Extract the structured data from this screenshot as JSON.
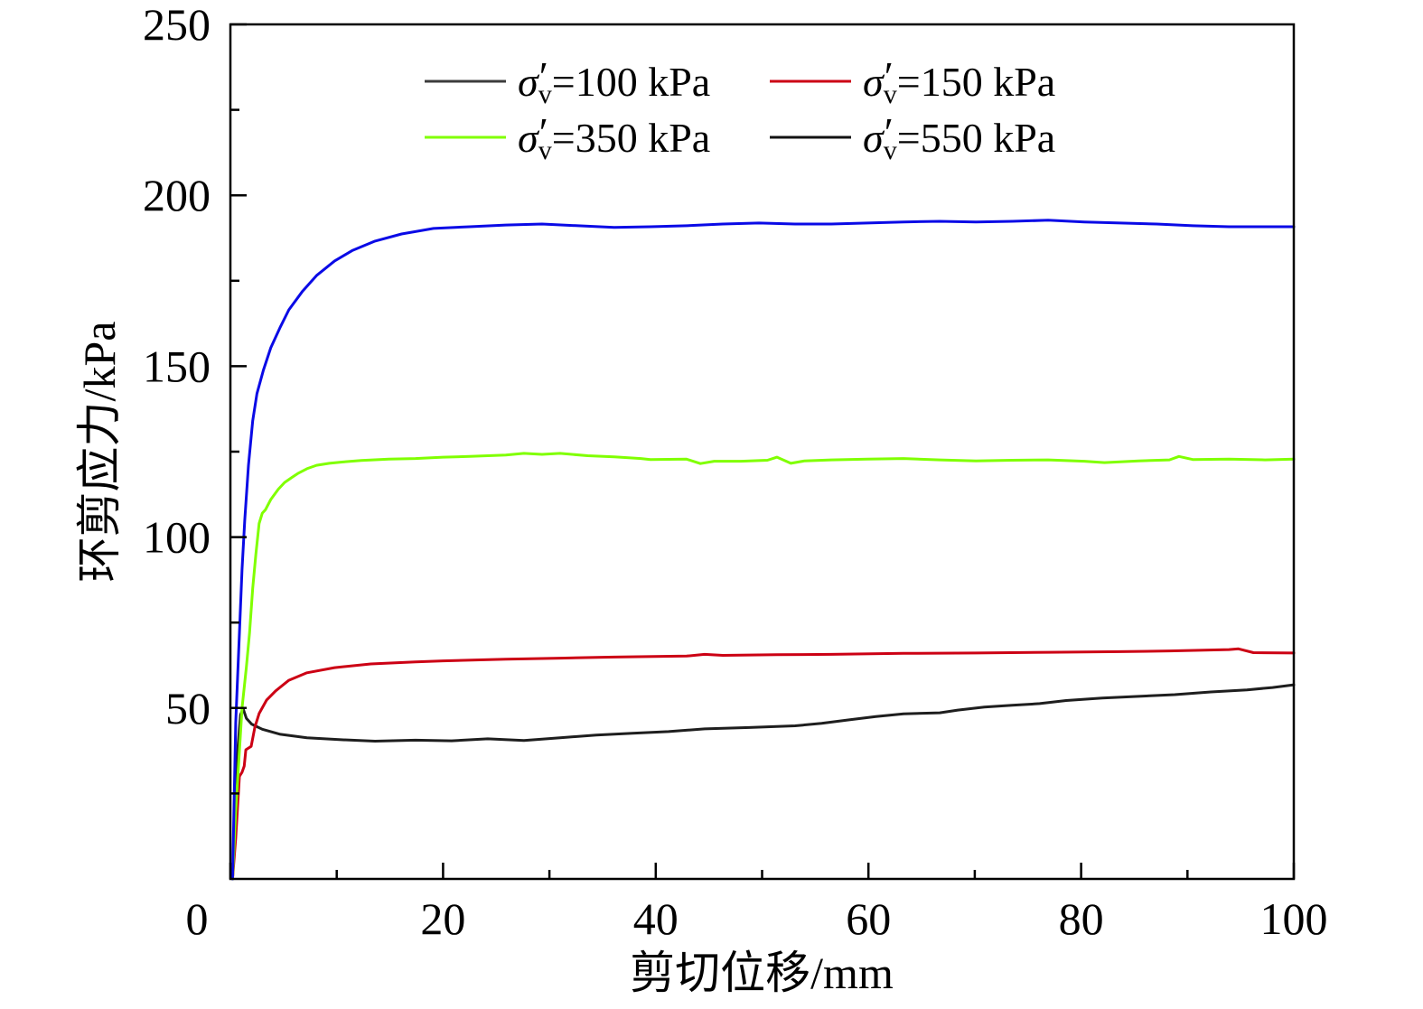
{
  "chart_data": {
    "type": "line",
    "xlabel": "剪切位移/mm",
    "ylabel": "环剪应力/kPa",
    "xlim": [
      0,
      100
    ],
    "ylim": [
      0,
      250
    ],
    "x_ticks": [
      0,
      20,
      40,
      60,
      80,
      100
    ],
    "x_tick_labels": [
      "0",
      "20",
      "40",
      "60",
      "80",
      "100"
    ],
    "x_minor_ticks": [
      10,
      30,
      50,
      70,
      90
    ],
    "y_ticks": [
      50,
      100,
      150,
      200,
      250
    ],
    "y_tick_labels": [
      "50",
      "100",
      "150",
      "200",
      "250"
    ],
    "y_minor_ticks": [
      25,
      75,
      125,
      175,
      225
    ],
    "grid": false,
    "legend_position": "top",
    "legend_columns": 2,
    "series": [
      {
        "name": "σ′v=100 kPa",
        "color": "#1e1e1e",
        "legend_color": "#3c3c3c",
        "points": [
          [
            0.2,
            0
          ],
          [
            0.45,
            18
          ],
          [
            0.7,
            38
          ],
          [
            0.95,
            48
          ],
          [
            1.2,
            49.8
          ],
          [
            1.5,
            47
          ],
          [
            2.0,
            45.3
          ],
          [
            3.0,
            43.8
          ],
          [
            4.7,
            42.3
          ],
          [
            7.2,
            41.3
          ],
          [
            10.6,
            40.7
          ],
          [
            13.6,
            40.3
          ],
          [
            17.4,
            40.6
          ],
          [
            20.8,
            40.4
          ],
          [
            24.2,
            41
          ],
          [
            27.6,
            40.5
          ],
          [
            31,
            41.3
          ],
          [
            34.4,
            42.1
          ],
          [
            37.8,
            42.6
          ],
          [
            41.2,
            43.1
          ],
          [
            44.6,
            43.9
          ],
          [
            48.8,
            44.3
          ],
          [
            53.1,
            44.8
          ],
          [
            55.6,
            45.5
          ],
          [
            58.1,
            46.5
          ],
          [
            60.7,
            47.5
          ],
          [
            63.3,
            48.3
          ],
          [
            66.7,
            48.6
          ],
          [
            68.4,
            49.4
          ],
          [
            70.9,
            50.3
          ],
          [
            73.5,
            50.8
          ],
          [
            76.1,
            51.3
          ],
          [
            78.6,
            52.2
          ],
          [
            82,
            52.9
          ],
          [
            85.4,
            53.4
          ],
          [
            88.8,
            53.9
          ],
          [
            92.2,
            54.7
          ],
          [
            95.6,
            55.3
          ],
          [
            98,
            56
          ],
          [
            100,
            56.8
          ]
        ]
      },
      {
        "name": "σ′v=150 kPa",
        "color": "#cc0014",
        "legend_color": "#cc0014",
        "points": [
          [
            0.2,
            0
          ],
          [
            0.5,
            12
          ],
          [
            0.85,
            30
          ],
          [
            1.1,
            31.2
          ],
          [
            1.3,
            33
          ],
          [
            1.45,
            37.8
          ],
          [
            1.95,
            38.8
          ],
          [
            2.3,
            44.4
          ],
          [
            2.7,
            48.4
          ],
          [
            3.4,
            52.3
          ],
          [
            4.25,
            55
          ],
          [
            5.5,
            58.1
          ],
          [
            7.2,
            60.3
          ],
          [
            9.8,
            61.8
          ],
          [
            13.2,
            62.9
          ],
          [
            17.4,
            63.5
          ],
          [
            20,
            63.8
          ],
          [
            25.9,
            64.3
          ],
          [
            31,
            64.6
          ],
          [
            36.1,
            64.9
          ],
          [
            42.9,
            65.2
          ],
          [
            44.6,
            65.7
          ],
          [
            46.3,
            65.4
          ],
          [
            51.4,
            65.6
          ],
          [
            56.5,
            65.7
          ],
          [
            63.3,
            66
          ],
          [
            70.1,
            66.1
          ],
          [
            76.9,
            66.3
          ],
          [
            83.7,
            66.5
          ],
          [
            88.3,
            66.7
          ],
          [
            93.9,
            67.1
          ],
          [
            94.8,
            67.3
          ],
          [
            96.2,
            66.2
          ],
          [
            100,
            66.1
          ]
        ]
      },
      {
        "name": "σ′v=350 kPa",
        "color": "#80ff00",
        "legend_color": "#80ff00",
        "points": [
          [
            0.2,
            0
          ],
          [
            0.5,
            20
          ],
          [
            0.9,
            40
          ],
          [
            1.1,
            50
          ],
          [
            1.5,
            62
          ],
          [
            1.8,
            72
          ],
          [
            2.1,
            85
          ],
          [
            2.4,
            95
          ],
          [
            2.7,
            104
          ],
          [
            3.0,
            107
          ],
          [
            3.3,
            108
          ],
          [
            3.8,
            111
          ],
          [
            4.5,
            114
          ],
          [
            5.1,
            116
          ],
          [
            5.8,
            117.5
          ],
          [
            6.4,
            118.7
          ],
          [
            7.2,
            120
          ],
          [
            8.1,
            121
          ],
          [
            9.3,
            121.6
          ],
          [
            10.6,
            122
          ],
          [
            12.3,
            122.4
          ],
          [
            14.9,
            122.8
          ],
          [
            17.4,
            123
          ],
          [
            20,
            123.4
          ],
          [
            22.5,
            123.6
          ],
          [
            25.9,
            124
          ],
          [
            27.6,
            124.5
          ],
          [
            29.3,
            124.2
          ],
          [
            31,
            124.5
          ],
          [
            33.6,
            123.8
          ],
          [
            36.1,
            123.5
          ],
          [
            38.6,
            123
          ],
          [
            39.5,
            122.7
          ],
          [
            42.9,
            122.8
          ],
          [
            44.2,
            121.5
          ],
          [
            45.5,
            122.2
          ],
          [
            48,
            122.2
          ],
          [
            50.5,
            122.5
          ],
          [
            51.4,
            123.4
          ],
          [
            52.7,
            121.6
          ],
          [
            54,
            122.3
          ],
          [
            56.5,
            122.6
          ],
          [
            59.9,
            122.8
          ],
          [
            63.3,
            123
          ],
          [
            66.7,
            122.6
          ],
          [
            70.1,
            122.3
          ],
          [
            73.5,
            122.5
          ],
          [
            76.9,
            122.6
          ],
          [
            80.3,
            122.2
          ],
          [
            82.2,
            121.8
          ],
          [
            85.4,
            122.3
          ],
          [
            88.3,
            122.6
          ],
          [
            89.2,
            123.6
          ],
          [
            90.5,
            122.7
          ],
          [
            93.9,
            122.8
          ],
          [
            97.3,
            122.6
          ],
          [
            100,
            122.8
          ]
        ]
      },
      {
        "name": "σ′v=550 kPa",
        "color": "#0a0ae6",
        "legend_color": "#111111",
        "points": [
          [
            0.2,
            0
          ],
          [
            0.5,
            45.7
          ],
          [
            0.85,
            72
          ],
          [
            1.1,
            90.6
          ],
          [
            1.35,
            105
          ],
          [
            1.7,
            121
          ],
          [
            2.1,
            134
          ],
          [
            2.5,
            142
          ],
          [
            3.1,
            148.8
          ],
          [
            3.8,
            155.4
          ],
          [
            4.7,
            161.5
          ],
          [
            5.5,
            166.5
          ],
          [
            6.8,
            172
          ],
          [
            8.1,
            176.5
          ],
          [
            9.8,
            180.8
          ],
          [
            11.5,
            183.9
          ],
          [
            13.6,
            186.6
          ],
          [
            16.1,
            188.7
          ],
          [
            19.1,
            190.3
          ],
          [
            22.5,
            190.8
          ],
          [
            25.9,
            191.3
          ],
          [
            29.3,
            191.6
          ],
          [
            32.7,
            191.1
          ],
          [
            36.1,
            190.6
          ],
          [
            39.5,
            190.8
          ],
          [
            42.9,
            191.1
          ],
          [
            46.3,
            191.6
          ],
          [
            49.7,
            191.9
          ],
          [
            53.1,
            191.6
          ],
          [
            56.5,
            191.6
          ],
          [
            59.9,
            191.9
          ],
          [
            63.3,
            192.2
          ],
          [
            66.7,
            192.4
          ],
          [
            70.1,
            192.2
          ],
          [
            73.5,
            192.4
          ],
          [
            76.9,
            192.7
          ],
          [
            80.3,
            192.2
          ],
          [
            83.7,
            191.9
          ],
          [
            87.1,
            191.6
          ],
          [
            90.5,
            191.1
          ],
          [
            93.9,
            190.8
          ],
          [
            97.3,
            190.8
          ],
          [
            100,
            190.8
          ]
        ]
      }
    ]
  }
}
